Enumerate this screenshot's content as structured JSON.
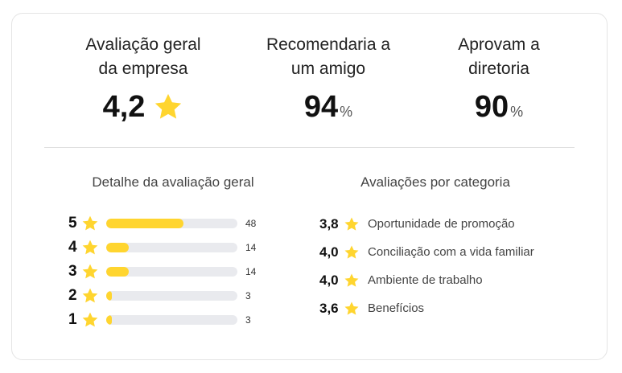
{
  "summary": {
    "overall": {
      "label_line1": "Avaliação geral",
      "label_line2": "da empresa",
      "value": "4,2"
    },
    "recommend": {
      "label_line1": "Recomendaria a",
      "label_line2": "um amigo",
      "value": "94",
      "unit": "%"
    },
    "approve": {
      "label_line1": "Aprovam a",
      "label_line2": "diretoria",
      "value": "90",
      "unit": "%"
    }
  },
  "distribution": {
    "title": "Detalhe da avaliação geral",
    "rows": [
      {
        "stars": "5",
        "count": "48",
        "fraction": 0.59
      },
      {
        "stars": "4",
        "count": "14",
        "fraction": 0.17
      },
      {
        "stars": "3",
        "count": "14",
        "fraction": 0.17
      },
      {
        "stars": "2",
        "count": "3",
        "fraction": 0.04
      },
      {
        "stars": "1",
        "count": "3",
        "fraction": 0.04
      }
    ]
  },
  "categories": {
    "title": "Avaliações por categoria",
    "items": [
      {
        "score": "3,8",
        "name": "Oportunidade de promoção"
      },
      {
        "score": "4,0",
        "name": "Conciliação com a vida familiar"
      },
      {
        "score": "4,0",
        "name": "Ambiente de trabalho"
      },
      {
        "score": "3,6",
        "name": "Benefícios"
      }
    ]
  },
  "colors": {
    "accent": "#ffd52f",
    "bar_track": "#e9eaee"
  },
  "icons": {
    "star": "star-icon"
  }
}
